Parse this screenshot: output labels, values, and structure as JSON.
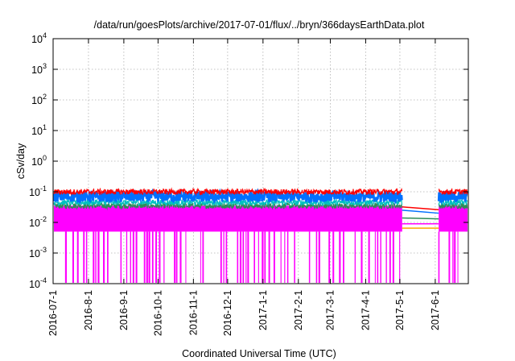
{
  "chart_data": {
    "type": "area",
    "title": "/data/run/goesPlots/archive/2017-07-01/flux/../bryn/366daysEarthData.plot",
    "xlabel": "Coordinated Universal Time (UTC)",
    "ylabel": "cSv/day",
    "y_scale": "log",
    "ylim": [
      0.0001,
      10000
    ],
    "xlim": [
      "2016-07-01",
      "2017-06-30"
    ],
    "grid": true,
    "y_ticks": [
      {
        "value": 0.0001,
        "base": "10",
        "exp": "-4"
      },
      {
        "value": 0.001,
        "base": "10",
        "exp": "-3"
      },
      {
        "value": 0.01,
        "base": "10",
        "exp": "-2"
      },
      {
        "value": 0.1,
        "base": "10",
        "exp": "-1"
      },
      {
        "value": 1,
        "base": "10",
        "exp": "0"
      },
      {
        "value": 10,
        "base": "10",
        "exp": "1"
      },
      {
        "value": 100,
        "base": "10",
        "exp": "2"
      },
      {
        "value": 1000,
        "base": "10",
        "exp": "3"
      },
      {
        "value": 10000,
        "base": "10",
        "exp": "4"
      }
    ],
    "x_ticks": [
      "2016-07-1",
      "2016-8-1",
      "2016-9-1",
      "2016-10-1",
      "2016-11-1",
      "2016-12-1",
      "2017-1-1",
      "2017-2-1",
      "2017-3-1",
      "2017-4-1",
      "2017-5-1",
      "2017-6-1"
    ],
    "data_gap": [
      "2017-05-03",
      "2017-06-04"
    ],
    "series": [
      {
        "color": "#ff0000",
        "typical": 0.1
      },
      {
        "color": "#0070ff",
        "typical": 0.07
      },
      {
        "color": "#00c0c0",
        "typical": 0.045
      },
      {
        "color": "#2e8b57",
        "typical": 0.035
      },
      {
        "color": "#ff00ff",
        "typical": 0.025,
        "floor": 0.005
      }
    ]
  }
}
